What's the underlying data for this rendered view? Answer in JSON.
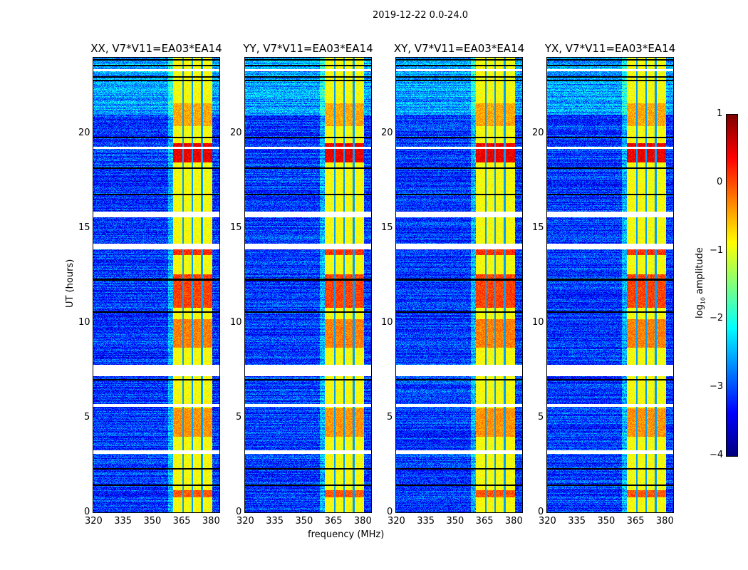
{
  "chart_data": {
    "type": "heatmap",
    "title": "2019-12-22 0.0-24.0",
    "xlabel": "frequency (MHz)",
    "ylabel": "UT (hours)",
    "xlim": [
      320,
      384.4
    ],
    "ylim": [
      0,
      24
    ],
    "xticks": [
      "320",
      "335",
      "350",
      "365",
      "380"
    ],
    "xtick_values": [
      320,
      335,
      350,
      365,
      380
    ],
    "yticks": [
      "0",
      "5",
      "10",
      "15",
      "20"
    ],
    "ytick_values": [
      0,
      5,
      10,
      15,
      20
    ],
    "panels": [
      {
        "title": "XX, V7*V11=EA03*EA14"
      },
      {
        "title": "YY, V7*V11=EA03*EA14"
      },
      {
        "title": "XY, V7*V11=EA03*EA14"
      },
      {
        "title": "YX, V7*V11=EA03*EA14"
      }
    ],
    "colorbar": {
      "label": "log10 amplitude",
      "label_main": "log",
      "label_sub": "10",
      "label_rest": " amplitude",
      "range": [
        -4,
        1
      ],
      "colormap": "jet",
      "ticks": [
        "1",
        "0",
        "−1",
        "−2",
        "−3",
        "−4"
      ],
      "tick_values": [
        1,
        0,
        -1,
        -2,
        -3,
        -4
      ]
    },
    "background_level": -3.1,
    "bright_band_mhz": [
      360.7,
      380.4
    ],
    "bright_band_level": -0.9,
    "band_dark_lines_mhz": [
      365.8,
      370.5,
      375.3
    ],
    "flagged_gaps_hours": [
      [
        3.1,
        3.3
      ],
      [
        5.6,
        5.75
      ],
      [
        7.2,
        7.8
      ],
      [
        13.9,
        14.2
      ],
      [
        15.6,
        15.9
      ],
      [
        23.3,
        23.4
      ],
      [
        19.2,
        19.3
      ]
    ],
    "dark_lines_hours": [
      1.45,
      2.3,
      7.0,
      10.6,
      12.3,
      16.8,
      18.2,
      19.8,
      22.8,
      23.0,
      23.6,
      23.9
    ],
    "hot_regions_hours": [
      [
        0.8,
        1.2,
        0.2
      ],
      [
        4.0,
        5.5,
        -0.1
      ],
      [
        8.7,
        10.2,
        0.0
      ],
      [
        10.8,
        12.6,
        0.3
      ],
      [
        13.6,
        13.9,
        0.4
      ],
      [
        18.5,
        19.5,
        0.7
      ],
      [
        20.4,
        21.6,
        -0.2
      ]
    ]
  }
}
